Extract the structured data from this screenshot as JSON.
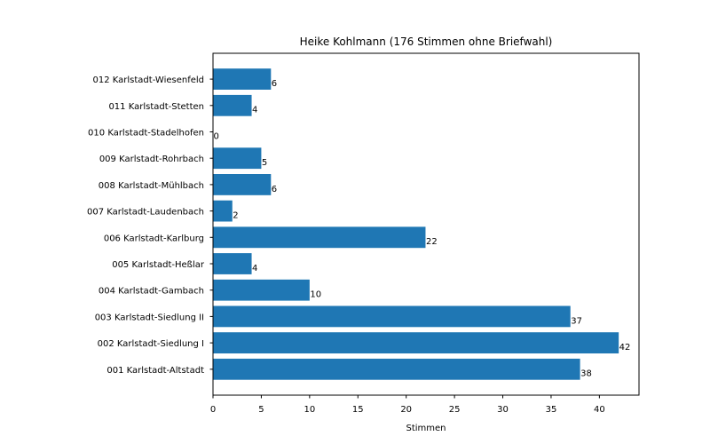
{
  "chart_data": {
    "type": "bar",
    "orientation": "horizontal",
    "title": "Heike Kohlmann (176 Stimmen ohne Briefwahl)",
    "xlabel": "Stimmen",
    "ylabel": "",
    "categories": [
      "001 Karlstadt-Altstadt",
      "002 Karlstadt-Siedlung I",
      "003 Karlstadt-Siedlung II",
      "004 Karlstadt-Gambach",
      "005 Karlstadt-Heßlar",
      "006 Karlstadt-Karlburg",
      "007 Karlstadt-Laudenbach",
      "008 Karlstadt-Mühlbach",
      "009 Karlstadt-Rohrbach",
      "010 Karlstadt-Stadelhofen",
      "011 Karlstadt-Stetten",
      "012 Karlstadt-Wiesenfeld"
    ],
    "values": [
      38,
      42,
      37,
      10,
      4,
      22,
      2,
      6,
      5,
      0,
      4,
      6
    ],
    "xlim": [
      0,
      44.1
    ],
    "xticks": [
      0,
      5,
      10,
      15,
      20,
      25,
      30,
      35,
      40
    ],
    "grid": false,
    "legend": "none",
    "bar_color": "#1f77b4"
  }
}
